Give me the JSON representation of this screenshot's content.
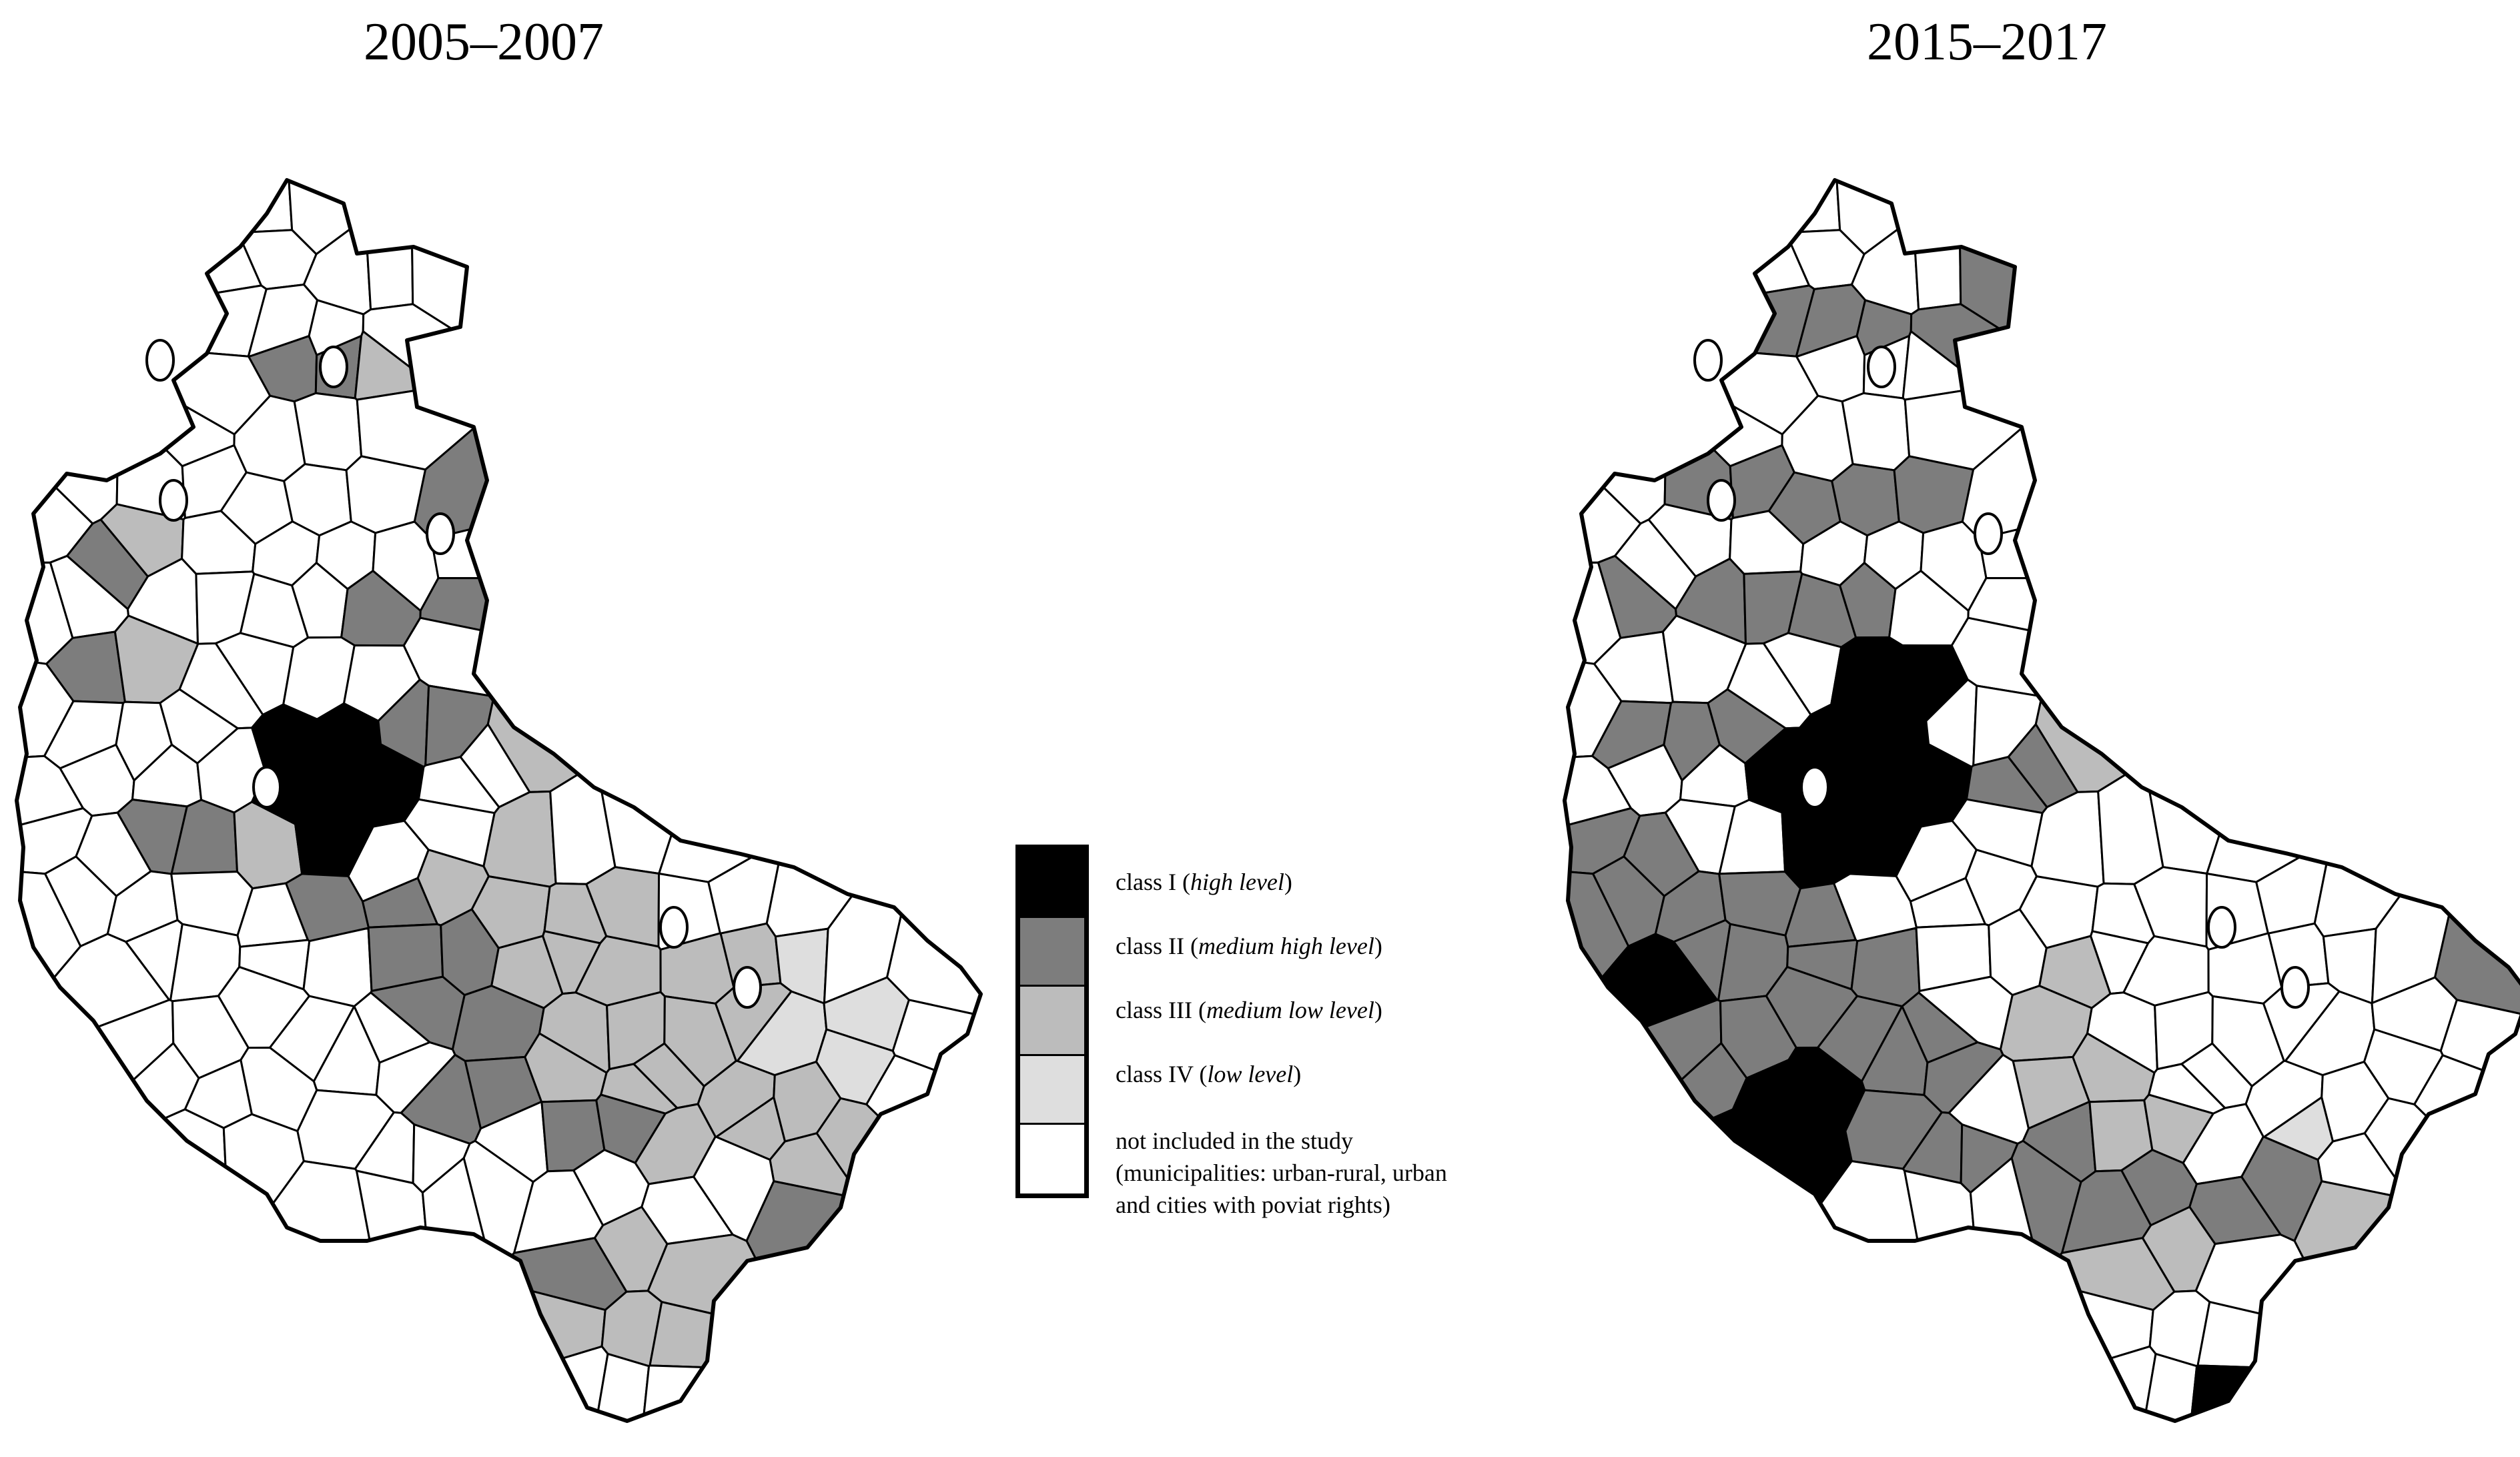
{
  "titles": {
    "left": "2005–2007",
    "right": "2015–2017"
  },
  "legend": {
    "items": [
      {
        "key": "class1",
        "prefix": "class I (",
        "emphasis": "high level",
        "suffix": ")",
        "color": "#000000"
      },
      {
        "key": "class2",
        "prefix": "class II (",
        "emphasis": "medium high level",
        "suffix": ")",
        "color": "#7d7d7d"
      },
      {
        "key": "class3",
        "prefix": "class III (",
        "emphasis": "medium low level",
        "suffix": ")",
        "color": "#bcbcbc"
      },
      {
        "key": "class4",
        "prefix": "class IV (",
        "emphasis": "low level",
        "suffix": ")",
        "color": "#dedede"
      },
      {
        "key": "excluded",
        "lines": [
          "not included in the study",
          "(municipalities: urban-rural, urban",
          "and cities with poviat rights)"
        ],
        "color": "#ffffff"
      }
    ]
  }
}
